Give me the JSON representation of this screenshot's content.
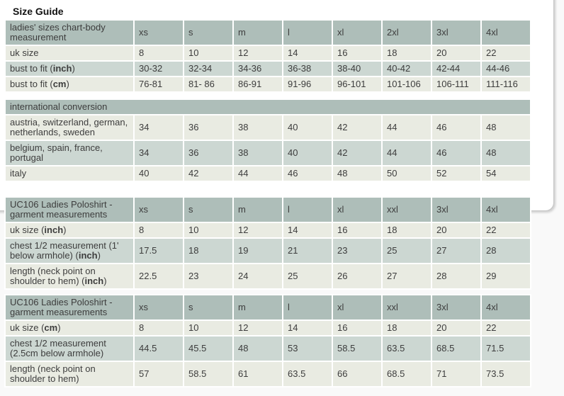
{
  "title": "Size Guide",
  "colors": {
    "page_bg": "#f9f9f9",
    "panel_border": "#c6c6c6",
    "header_bg": "#aebeb9",
    "row_light": "#e9ebe2",
    "row_dark": "#ccd7d2",
    "text": "#3d3d3d"
  },
  "tables": [
    {
      "name": "ladies-sizes-table",
      "corner_label": [
        [
          "ladies' sizes chart-body measurement",
          0
        ]
      ],
      "columns": [
        "xs",
        "s",
        "m",
        "l",
        "xl",
        "2xl",
        "3xl",
        "4xl"
      ],
      "rows": [
        {
          "label": [
            [
              "uk size",
              0
            ]
          ],
          "values": [
            "8",
            "10",
            "12",
            "14",
            "16",
            "18",
            "20",
            "22"
          ]
        },
        {
          "label": [
            [
              "bust to fit (",
              0
            ],
            [
              "inch",
              1
            ],
            [
              ")",
              0
            ]
          ],
          "values": [
            "30-32",
            "32-34",
            "34-36",
            "36-38",
            "38-40",
            "40-42",
            "42-44",
            "44-46"
          ]
        },
        {
          "label": [
            [
              "bust to fit (",
              0
            ],
            [
              "cm",
              1
            ],
            [
              ")",
              0
            ]
          ],
          "values": [
            "76-81",
            "81- 86",
            "86-91",
            "91-96",
            "96-101",
            "101-106",
            "106-111",
            "111-116"
          ]
        }
      ]
    },
    {
      "name": "international-conversion-table",
      "full_header": "international conversion",
      "rows": [
        {
          "label": [
            [
              "austria, switzerland, german, netherlands, sweden",
              0
            ]
          ],
          "values": [
            "34",
            "36",
            "38",
            "40",
            "42",
            "44",
            "46",
            "48"
          ]
        },
        {
          "label": [
            [
              "belgium, spain, france, portugal",
              0
            ]
          ],
          "values": [
            "34",
            "36",
            "38",
            "40",
            "42",
            "44",
            "46",
            "48"
          ]
        },
        {
          "label": [
            [
              "italy",
              0
            ]
          ],
          "values": [
            "40",
            "42",
            "44",
            "46",
            "48",
            "50",
            "52",
            "54"
          ]
        }
      ]
    },
    {
      "name": "poloshirt-inch-table",
      "corner_label": [
        [
          "UC106 Ladies Poloshirt - garment measurements",
          0
        ]
      ],
      "columns": [
        "xs",
        "s",
        "m",
        "l",
        "xl",
        "xxl",
        "3xl",
        "4xl"
      ],
      "rows": [
        {
          "label": [
            [
              "uk size (",
              0
            ],
            [
              "inch",
              1
            ],
            [
              ")",
              0
            ]
          ],
          "values": [
            "8",
            "10",
            "12",
            "14",
            "16",
            "18",
            "20",
            "22"
          ]
        },
        {
          "label": [
            [
              "chest 1/2 measurement (1' below armhole) (",
              0
            ],
            [
              "inch",
              1
            ],
            [
              ")",
              0
            ]
          ],
          "values": [
            "17.5",
            "18",
            "19",
            "21",
            "23",
            "25",
            "27",
            "28"
          ]
        },
        {
          "label": [
            [
              "length (neck point on shoulder to hem) (",
              0
            ],
            [
              "inch",
              1
            ],
            [
              ")",
              0
            ]
          ],
          "values": [
            "22.5",
            "23",
            "24",
            "25",
            "26",
            "27",
            "28",
            "29"
          ]
        }
      ]
    },
    {
      "name": "poloshirt-cm-table",
      "corner_label": [
        [
          "UC106 Ladies Poloshirt - garment measurements",
          0
        ]
      ],
      "columns": [
        "xs",
        "s",
        "m",
        "l",
        "xl",
        "xxl",
        "3xl",
        "4xl"
      ],
      "rows": [
        {
          "label": [
            [
              "uk size (",
              0
            ],
            [
              "cm",
              1
            ],
            [
              ")",
              0
            ]
          ],
          "values": [
            "8",
            "10",
            "12",
            "14",
            "16",
            "18",
            "20",
            "22"
          ]
        },
        {
          "label": [
            [
              "chest 1/2 measurement (2.5cm below armhole)",
              0
            ]
          ],
          "values": [
            "44.5",
            "45.5",
            "48",
            "53",
            "58.5",
            "63.5",
            "68.5",
            "71.5"
          ]
        },
        {
          "label": [
            [
              "length (neck point on shoulder to hem)",
              0
            ]
          ],
          "values": [
            "57",
            "58.5",
            "61",
            "63.5",
            "66",
            "68.5",
            "71",
            "73.5"
          ]
        }
      ]
    }
  ]
}
